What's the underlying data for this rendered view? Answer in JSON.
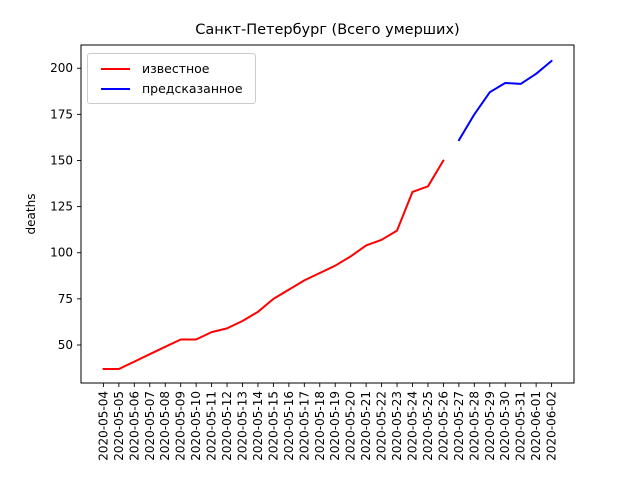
{
  "figure": {
    "background": "#ffffff"
  },
  "chart_data": {
    "type": "line",
    "title": "Санкт-Петербург (Всего умерших)",
    "xlabel": "",
    "ylabel": "deaths",
    "grid": false,
    "legend_position": "upper left",
    "axis_color": "#000000",
    "categories": [
      "2020-05-04",
      "2020-05-05",
      "2020-05-06",
      "2020-05-07",
      "2020-05-08",
      "2020-05-09",
      "2020-05-10",
      "2020-05-11",
      "2020-05-12",
      "2020-05-13",
      "2020-05-14",
      "2020-05-15",
      "2020-05-16",
      "2020-05-17",
      "2020-05-18",
      "2020-05-19",
      "2020-05-20",
      "2020-05-21",
      "2020-05-22",
      "2020-05-23",
      "2020-05-24",
      "2020-05-25",
      "2020-05-26",
      "2020-05-27",
      "2020-05-28",
      "2020-05-29",
      "2020-05-30",
      "2020-05-31",
      "2020-06-01",
      "2020-06-02"
    ],
    "yticks": [
      50,
      75,
      100,
      125,
      150,
      175,
      200
    ],
    "ylim": [
      29.4,
      212.6
    ],
    "x_margin_fraction": 0.05,
    "series": [
      {
        "name": "известное",
        "color": "#ff0000",
        "start_index": 0,
        "values": [
          37,
          37,
          41,
          45,
          49,
          53,
          53,
          57,
          59,
          63,
          68,
          75,
          80,
          85,
          89,
          93,
          98,
          104,
          107,
          112,
          133,
          136,
          150
        ]
      },
      {
        "name": "предсказанное",
        "color": "#0000ff",
        "start_index": 23,
        "values": [
          161,
          175,
          187,
          192,
          191.5,
          197,
          204
        ]
      }
    ]
  }
}
